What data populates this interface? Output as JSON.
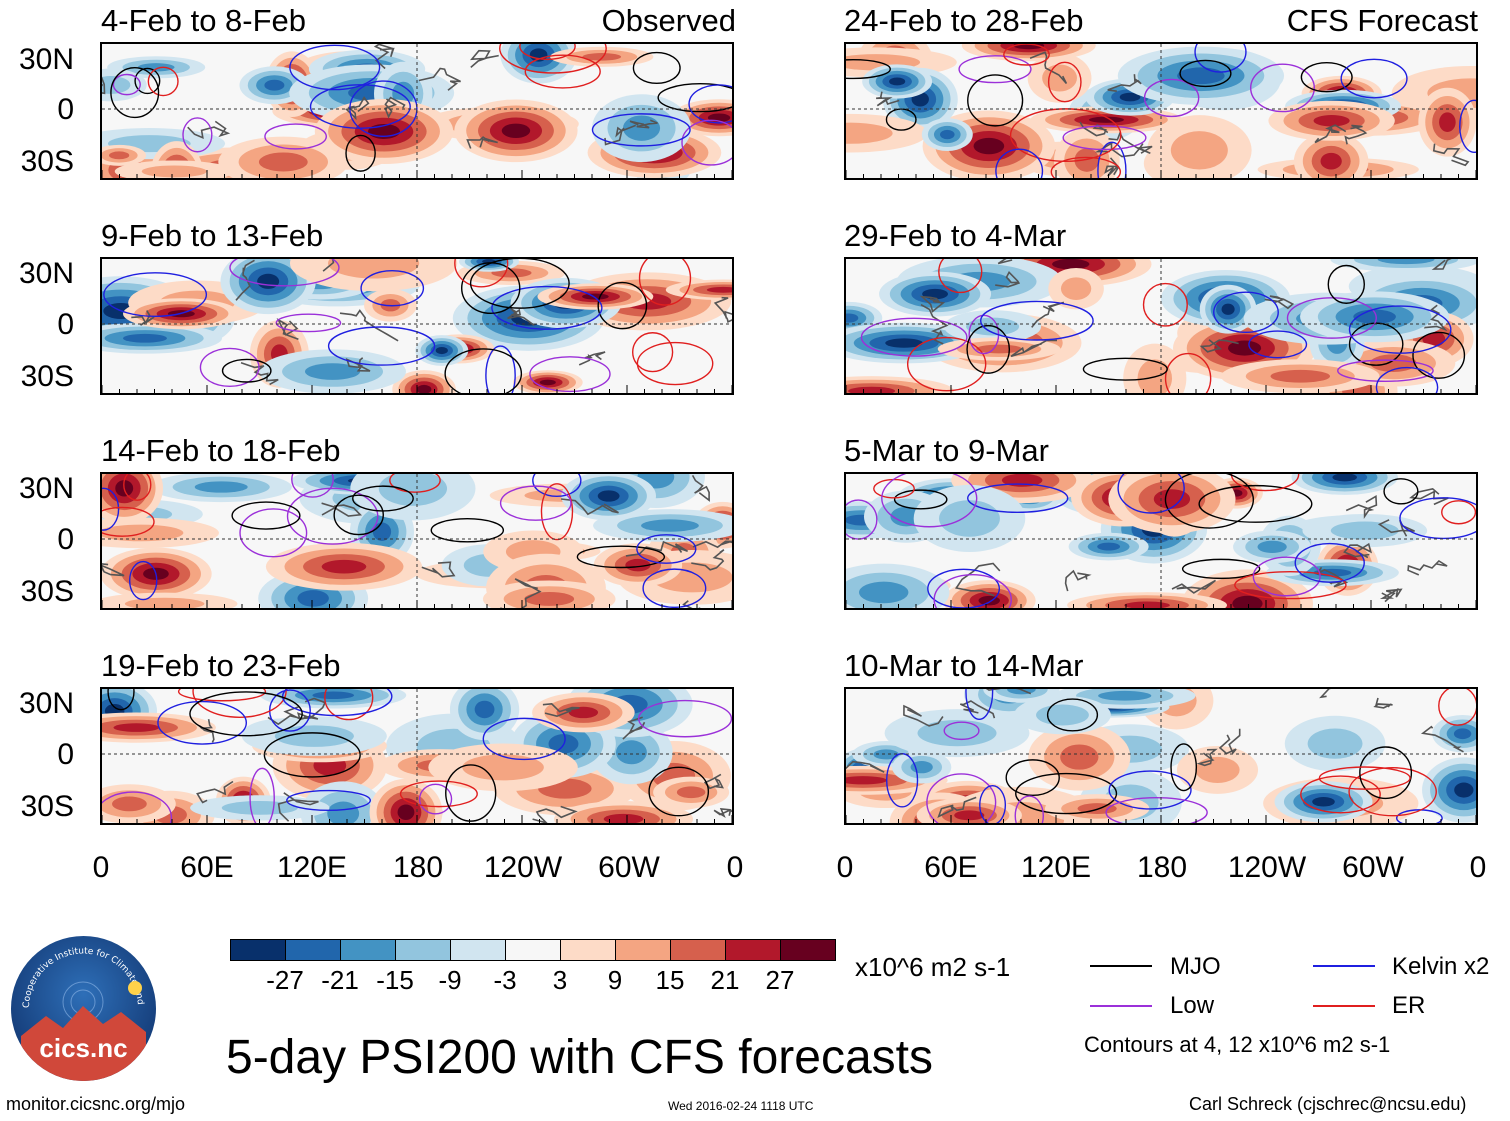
{
  "panels": [
    {
      "title_left": "4-Feb to 8-Feb",
      "title_right": "Observed"
    },
    {
      "title_left": "24-Feb to 28-Feb",
      "title_right": "CFS Forecast"
    },
    {
      "title_left": "9-Feb to 13-Feb",
      "title_right": ""
    },
    {
      "title_left": "29-Feb to 4-Mar",
      "title_right": ""
    },
    {
      "title_left": "14-Feb to 18-Feb",
      "title_right": ""
    },
    {
      "title_left": "5-Mar to 9-Mar",
      "title_right": ""
    },
    {
      "title_left": "19-Feb to 23-Feb",
      "title_right": ""
    },
    {
      "title_left": "10-Mar to 14-Mar",
      "title_right": ""
    }
  ],
  "lat_labels": [
    "30N",
    "0",
    "30S"
  ],
  "lon_labels": [
    "0",
    "60E",
    "120E",
    "180",
    "120W",
    "60W",
    "0"
  ],
  "colorbar": {
    "colors": [
      "#08306b",
      "#2166ac",
      "#4393c3",
      "#92c5de",
      "#d1e5f0",
      "#f7f7f7",
      "#fddbc7",
      "#f4a582",
      "#d6604d",
      "#b2182b",
      "#67001f"
    ],
    "labels": [
      "-27",
      "-21",
      "-15",
      "-9",
      "-3",
      "3",
      "9",
      "15",
      "21",
      "27"
    ],
    "units": "x10^6 m2 s-1"
  },
  "legend": {
    "items": [
      {
        "label": "MJO",
        "color": "#000000"
      },
      {
        "label": "Kelvin x2",
        "color": "#1f1fe0"
      },
      {
        "label": "Low",
        "color": "#9b30d9"
      },
      {
        "label": "ER",
        "color": "#e01f1f"
      }
    ],
    "contours_note": "Contours at 4, 12 x10^6 m2 s-1"
  },
  "title": "5-day PSI200 with CFS forecasts",
  "footer": {
    "left": "monitor.cicsnc.org/mjo",
    "center": "Wed 2016-02-24 1118 UTC",
    "right": "Carl Schreck (cjschrec@ncsu.edu)"
  },
  "logo": {
    "text": "cics.nc",
    "ring_text": "Cooperative Institute for Climate and Satellites"
  }
}
